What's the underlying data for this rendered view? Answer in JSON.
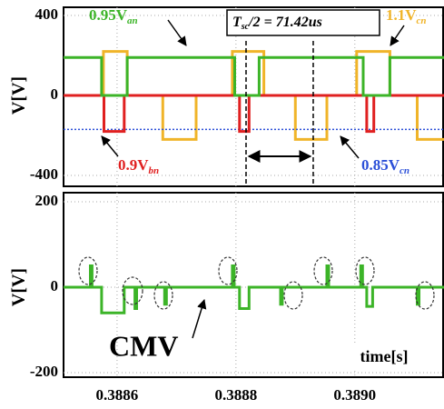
{
  "chart_data": [
    {
      "type": "line",
      "y_label": "V[V]",
      "xlim": [
        0.38851,
        0.38915
      ],
      "ylim": [
        -400,
        400
      ],
      "yticks": [
        -400,
        0,
        400
      ],
      "xticks": [
        0.3886,
        0.3888,
        {
          "value": 0.389,
          "label": "0.3890"
        }
      ],
      "grid": true,
      "series": [
        {
          "name": "1.1V",
          "sub": "cn",
          "color": "#f0b429",
          "x": [
            0.38851,
            0.388577,
            0.388577,
            0.388617,
            0.388617,
            0.388677,
            0.388677,
            0.388733,
            0.388733,
            0.388794,
            0.388794,
            0.388847,
            0.388847,
            0.3889,
            0.3889,
            0.388953,
            0.388953,
            0.389003,
            0.389003,
            0.389059,
            0.389059,
            0.389105,
            0.389105,
            0.38915
          ],
          "values": [
            0,
            0,
            220,
            220,
            0,
            0,
            -220,
            -220,
            0,
            0,
            220,
            220,
            0,
            0,
            -220,
            -220,
            0,
            0,
            220,
            220,
            0,
            0,
            -220,
            -220
          ]
        },
        {
          "name": "0.85V",
          "sub": "cn",
          "color": "#2b4fd8",
          "dash": true,
          "x": [
            0.38851,
            0.38915
          ],
          "values": [
            -170,
            -170
          ]
        },
        {
          "name": "0.9V",
          "sub": "bn",
          "color": "#e02020",
          "x": [
            0.38851,
            0.388578,
            0.388578,
            0.388612,
            0.388612,
            0.388806,
            0.388806,
            0.388822,
            0.388822,
            0.38902,
            0.38902,
            0.389032,
            0.389032,
            0.38915
          ],
          "values": [
            0,
            0,
            -180,
            -180,
            0,
            0,
            -180,
            -180,
            0,
            0,
            -180,
            -180,
            0,
            0
          ]
        },
        {
          "name": "0.95V",
          "sub": "an",
          "color": "#3cb428",
          "x": [
            0.38851,
            0.388574,
            0.388574,
            0.388617,
            0.388617,
            0.388798,
            0.388798,
            0.388839,
            0.388839,
            0.389014,
            0.389014,
            0.389059,
            0.389059,
            0.38915
          ],
          "values": [
            190,
            190,
            0,
            0,
            190,
            190,
            0,
            0,
            190,
            190,
            0,
            0,
            190,
            190
          ]
        }
      ],
      "annotation": {
        "text": "T",
        "sub": "sc",
        "rest": "/2 = 71.42us",
        "markers": [
          0.388817,
          0.38893
        ]
      }
    },
    {
      "type": "line",
      "y_label": "V[V]",
      "x_label": "time[s]",
      "label": "CMV",
      "xlim": [
        0.38851,
        0.38915
      ],
      "ylim": [
        -200,
        200
      ],
      "yticks": [
        -200,
        0,
        200
      ],
      "xticks": [
        0.3886,
        0.3888,
        {
          "value": 0.389,
          "label": "0.3890"
        }
      ],
      "grid": true,
      "series": [
        {
          "name": "CMV",
          "color": "#3cb428",
          "x": [
            0.38851,
            0.388555,
            0.388555,
            0.388558,
            0.388558,
            0.388574,
            0.388574,
            0.388612,
            0.388612,
            0.38863,
            0.38863,
            0.388633,
            0.388633,
            0.38868,
            0.38868,
            0.388683,
            0.388683,
            0.388794,
            0.388794,
            0.388797,
            0.388797,
            0.388806,
            0.388806,
            0.388822,
            0.388822,
            0.388875,
            0.388875,
            0.388878,
            0.388878,
            0.388953,
            0.388953,
            0.388956,
            0.388956,
            0.38901,
            0.38901,
            0.389013,
            0.389013,
            0.38902,
            0.38902,
            0.38903,
            0.38903,
            0.389105,
            0.389105,
            0.389108,
            0.389108,
            0.38915
          ],
          "values": [
            0,
            0,
            50,
            50,
            0,
            0,
            -60,
            -60,
            0,
            0,
            -50,
            -50,
            0,
            0,
            -40,
            -40,
            0,
            0,
            50,
            50,
            0,
            0,
            -50,
            -50,
            0,
            0,
            -40,
            -40,
            0,
            0,
            50,
            50,
            0,
            0,
            50,
            50,
            0,
            0,
            -45,
            -45,
            0,
            0,
            -40,
            -40,
            0,
            0
          ]
        }
      ]
    }
  ]
}
